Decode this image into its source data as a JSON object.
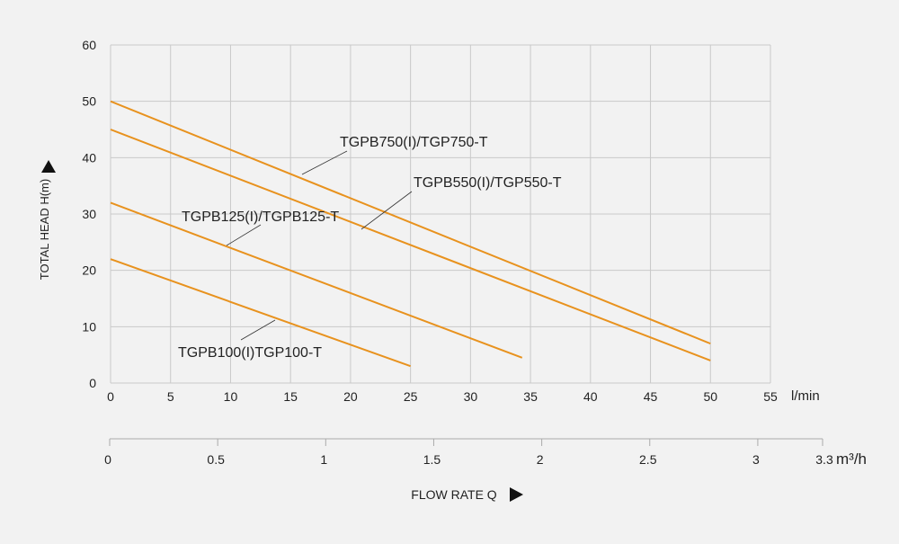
{
  "chart_data": {
    "type": "line",
    "ylabel": "TOTAL HEAD H(m)",
    "xlabel": "FLOW RATE Q",
    "x_unit": "l/min",
    "x2_unit": "m³/h",
    "xlim": [
      0,
      55
    ],
    "ylim": [
      0,
      60
    ],
    "x_ticks": [
      "0",
      "5",
      "10",
      "15",
      "20",
      "25",
      "30",
      "35",
      "40",
      "45",
      "50",
      "55"
    ],
    "y_ticks": [
      "0",
      "10",
      "20",
      "30",
      "40",
      "50",
      "60"
    ],
    "x2_ticks": [
      "0",
      "0.5",
      "1",
      "1.5",
      "2",
      "2.5",
      "3",
      "3.3"
    ],
    "x2_lim": [
      0,
      3.3
    ],
    "grid": true,
    "line_color": "#e8921e",
    "series": [
      {
        "name": "TGPB750(I)/TGP750-T",
        "x": [
          0,
          50
        ],
        "y": [
          50,
          7
        ]
      },
      {
        "name": "TGPB550(I)/TGP550-T",
        "x": [
          0,
          50
        ],
        "y": [
          45,
          4
        ]
      },
      {
        "name": "TGPB125(I)/TGPB125-T",
        "x": [
          0,
          34.3
        ],
        "y": [
          32,
          4.5
        ]
      },
      {
        "name": "TGPB100(I)TGP100-T",
        "x": [
          0,
          25
        ],
        "y": [
          22,
          3
        ]
      }
    ]
  }
}
